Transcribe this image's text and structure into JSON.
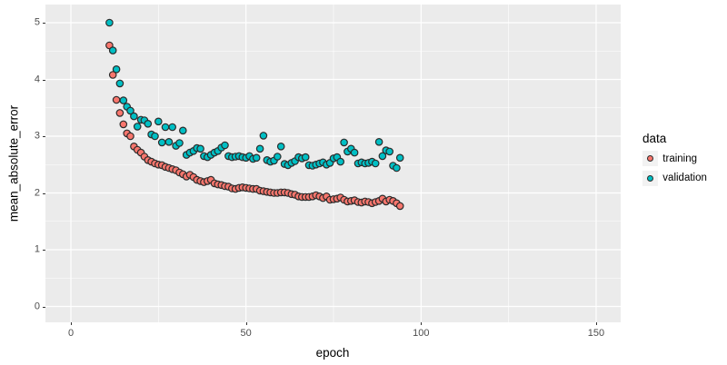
{
  "chart_data": {
    "type": "scatter",
    "xlabel": "epoch",
    "ylabel": "mean_absolute_error",
    "legend_title": "data",
    "legend_position": "right",
    "grid": true,
    "x_ticks": [
      0,
      50,
      100,
      150
    ],
    "y_ticks": [
      0,
      1,
      2,
      3,
      4,
      5
    ],
    "x_minor_ticks": [
      25,
      75,
      125
    ],
    "y_minor_ticks": [
      0.5,
      1.5,
      2.5,
      3.5,
      4.5
    ],
    "xlim": [
      -7.3,
      157
    ],
    "ylim": [
      -0.28,
      5.32
    ],
    "x": [
      11,
      12,
      13,
      14,
      15,
      16,
      17,
      18,
      19,
      20,
      21,
      22,
      23,
      24,
      25,
      26,
      27,
      28,
      29,
      30,
      31,
      32,
      33,
      34,
      35,
      36,
      37,
      38,
      39,
      40,
      41,
      42,
      43,
      44,
      45,
      46,
      47,
      48,
      49,
      50,
      51,
      52,
      53,
      54,
      55,
      56,
      57,
      58,
      59,
      60,
      61,
      62,
      63,
      64,
      65,
      66,
      67,
      68,
      69,
      70,
      71,
      72,
      73,
      74,
      75,
      76,
      77,
      78,
      79,
      80,
      81,
      82,
      83,
      84,
      85,
      86,
      87,
      88,
      89,
      90,
      91,
      92,
      93,
      94
    ],
    "series": [
      {
        "name": "training",
        "color": "#F8766D",
        "values": [
          4.6,
          4.08,
          3.64,
          3.41,
          3.21,
          3.05,
          3.0,
          2.82,
          2.76,
          2.71,
          2.64,
          2.58,
          2.55,
          2.52,
          2.5,
          2.49,
          2.46,
          2.44,
          2.42,
          2.4,
          2.36,
          2.33,
          2.29,
          2.32,
          2.28,
          2.23,
          2.21,
          2.19,
          2.21,
          2.23,
          2.17,
          2.15,
          2.14,
          2.12,
          2.11,
          2.08,
          2.07,
          2.09,
          2.1,
          2.09,
          2.08,
          2.07,
          2.07,
          2.04,
          2.03,
          2.02,
          2.01,
          2.0,
          2.0,
          2.01,
          2.01,
          2.0,
          1.98,
          1.97,
          1.94,
          1.93,
          1.93,
          1.93,
          1.94,
          1.96,
          1.94,
          1.91,
          1.94,
          1.88,
          1.89,
          1.9,
          1.92,
          1.88,
          1.85,
          1.86,
          1.87,
          1.84,
          1.83,
          1.85,
          1.84,
          1.82,
          1.84,
          1.86,
          1.9,
          1.85,
          1.88,
          1.86,
          1.82,
          1.77
        ]
      },
      {
        "name": "validation",
        "color": "#00BFC4",
        "values": [
          5.0,
          4.51,
          4.18,
          3.93,
          3.63,
          3.52,
          3.45,
          3.35,
          3.17,
          3.29,
          3.28,
          3.22,
          3.03,
          3.0,
          3.26,
          2.89,
          3.16,
          2.9,
          3.16,
          2.83,
          2.88,
          3.1,
          2.67,
          2.71,
          2.74,
          2.79,
          2.78,
          2.65,
          2.63,
          2.67,
          2.71,
          2.74,
          2.8,
          2.84,
          2.65,
          2.63,
          2.64,
          2.65,
          2.63,
          2.62,
          2.65,
          2.6,
          2.62,
          2.78,
          3.01,
          2.58,
          2.55,
          2.57,
          2.64,
          2.82,
          2.51,
          2.49,
          2.53,
          2.56,
          2.63,
          2.61,
          2.63,
          2.49,
          2.48,
          2.5,
          2.52,
          2.54,
          2.5,
          2.53,
          2.61,
          2.63,
          2.55,
          2.89,
          2.73,
          2.78,
          2.71,
          2.52,
          2.54,
          2.52,
          2.53,
          2.55,
          2.52,
          2.9,
          2.65,
          2.75,
          2.73,
          2.48,
          2.44,
          2.62
        ]
      }
    ]
  },
  "colors": {
    "panel_bg": "#EBEBEB",
    "grid": "#FFFFFF",
    "point_stroke": "#2B2B2B",
    "tick_text": "#4D4D4D",
    "title_text": "#000000",
    "legend_key_bg": "#F2F2F2",
    "page_bg": "#FFFFFF"
  }
}
